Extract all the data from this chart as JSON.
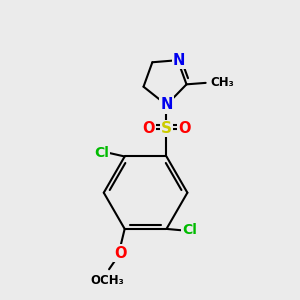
{
  "bg_color": "#ebebeb",
  "atom_colors": {
    "C": "#000000",
    "N": "#0000ee",
    "O": "#ff0000",
    "S": "#cccc00",
    "Cl": "#00bb00"
  },
  "bond_color": "#000000",
  "bond_width": 1.5,
  "font_size": 10.5,
  "fig_size": [
    3.0,
    3.0
  ],
  "dpi": 100
}
